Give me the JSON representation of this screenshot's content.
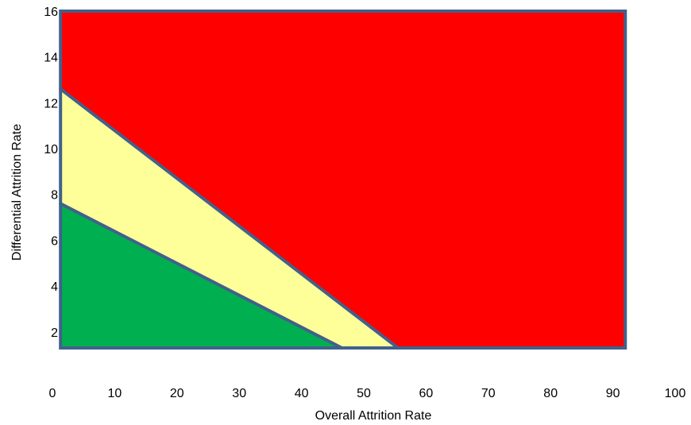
{
  "chart_data": {
    "type": "area",
    "xlabel": "Overall Attrition Rate",
    "ylabel": "Differential Attrition Rate",
    "xlim": [
      0,
      100
    ],
    "ylim": [
      1.3,
      16
    ],
    "plot_xlim": [
      1.3,
      92
    ],
    "x_ticks": [
      "0",
      "10",
      "20",
      "30",
      "40",
      "50",
      "60",
      "70",
      "80",
      "90",
      "100"
    ],
    "y_ticks": [
      "2",
      "4",
      "6",
      "8",
      "10",
      "12",
      "14",
      "16"
    ],
    "border_color": "#41618C",
    "regions": [
      {
        "color": "#FF0000",
        "polygon": [
          [
            1.3,
            1.3
          ],
          [
            92,
            1.3
          ],
          [
            92,
            16
          ],
          [
            1.3,
            16
          ]
        ]
      },
      {
        "color": "#FFFF99",
        "polygon": [
          [
            1.3,
            1.3
          ],
          [
            55.5,
            1.3
          ],
          [
            1.3,
            12.6
          ]
        ]
      },
      {
        "color": "#00B050",
        "polygon": [
          [
            1.3,
            1.3
          ],
          [
            46.5,
            1.3
          ],
          [
            1.3,
            7.6
          ]
        ]
      }
    ],
    "boundaries": [
      {
        "from": [
          1.3,
          12.6
        ],
        "to": [
          55.5,
          1.3
        ]
      },
      {
        "from": [
          1.3,
          7.6
        ],
        "to": [
          46.5,
          1.3
        ]
      }
    ]
  }
}
